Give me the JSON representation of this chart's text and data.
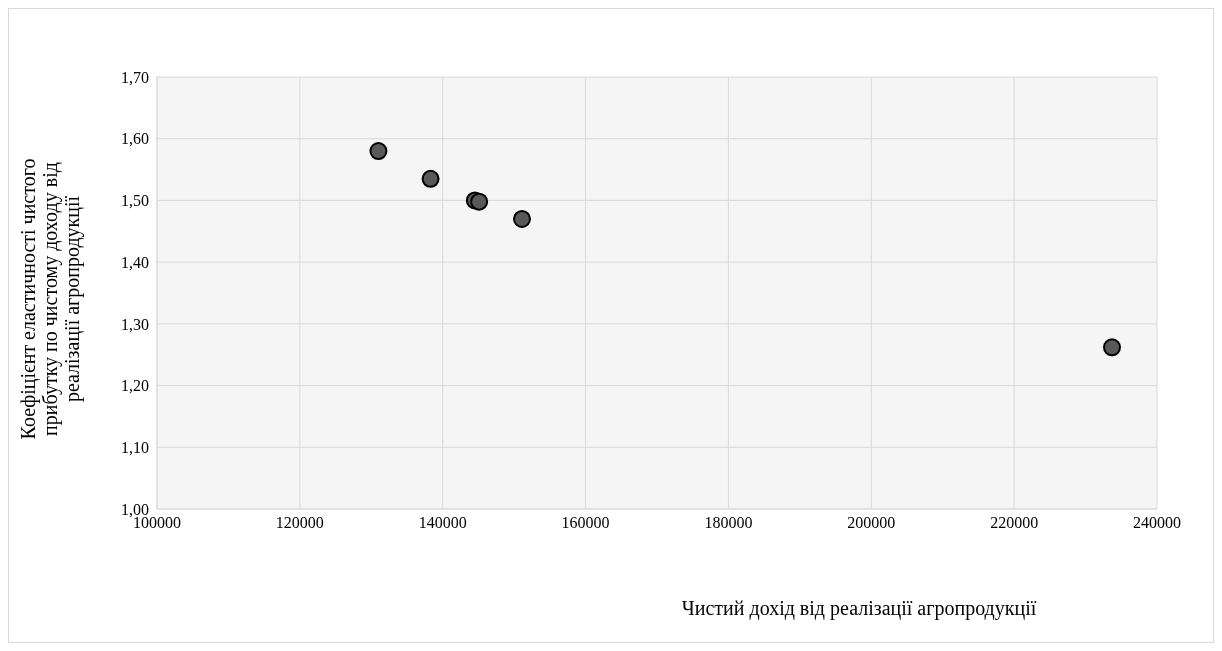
{
  "chart_data": {
    "type": "scatter",
    "xlabel": "Чистий дохід від реалізації агропродукції",
    "ylabel": "Коефіцієнт еластичності чистого прибутку по чистому доходу від реалізації агропродукції",
    "x": [
      131000,
      138300,
      144500,
      145100,
      151100,
      233700
    ],
    "values": [
      1.58,
      1.535,
      1.5,
      1.498,
      1.47,
      1.262
    ],
    "color": "#595959",
    "marker": "circle",
    "grid": true,
    "xlim": [
      100000,
      240000
    ],
    "xticks": [
      100000,
      120000,
      140000,
      160000,
      180000,
      200000,
      220000,
      240000
    ],
    "ylim": [
      1.0,
      1.7
    ],
    "yticks": [
      {
        "value": 1.0,
        "label": "1,00"
      },
      {
        "value": 1.1,
        "label": "1,10"
      },
      {
        "value": 1.2,
        "label": "1,20"
      },
      {
        "value": 1.3,
        "label": "1,30"
      },
      {
        "value": 1.4,
        "label": "1,40"
      },
      {
        "value": 1.5,
        "label": "1,50"
      },
      {
        "value": 1.6,
        "label": "1,60"
      },
      {
        "value": 1.7,
        "label": "1,70"
      }
    ]
  }
}
